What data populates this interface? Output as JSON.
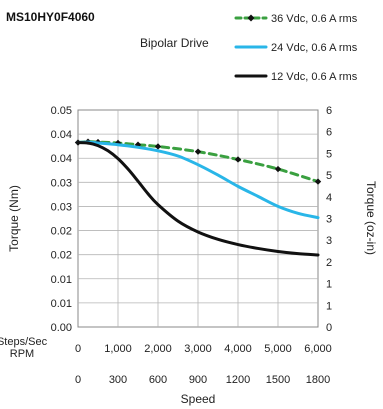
{
  "model_label": "MS10HY0F4060",
  "drive_label": "Bipolar Drive",
  "chart_data": {
    "type": "line",
    "y_left": {
      "label": "Torque (Nm)",
      "ticks": [
        "0.00",
        "0.01",
        "0.01",
        "0.02",
        "0.02",
        "0.03",
        "0.03",
        "0.04",
        "0.04",
        "0.05"
      ],
      "range": [
        0,
        0.05
      ]
    },
    "y_right": {
      "label": "Torque (oz-in)",
      "ticks": [
        "0",
        "1",
        "1",
        "2",
        "3",
        "3",
        "4",
        "5",
        "5",
        "6",
        "6"
      ],
      "range": [
        0,
        7
      ]
    },
    "x_primary": {
      "row_label": "Steps/Sec",
      "ticks": [
        "0",
        "1,000",
        "2,000",
        "3,000",
        "4,000",
        "5,000",
        "6,000"
      ],
      "range": [
        0,
        6000
      ]
    },
    "x_secondary": {
      "row_label": "RPM",
      "ticks": [
        "0",
        "300",
        "600",
        "900",
        "1200",
        "1500",
        "1800"
      ]
    },
    "xlabel": "Speed",
    "series": [
      {
        "name": "36 Vdc, 0.6 A rms",
        "color": "#3aa040",
        "style": "dashed",
        "marker": "diamond",
        "x": [
          0,
          250,
          500,
          1000,
          1500,
          2000,
          3000,
          4000,
          5000,
          6000
        ],
        "y": [
          0.0425,
          0.0427,
          0.0426,
          0.0424,
          0.042,
          0.0416,
          0.0404,
          0.0386,
          0.0364,
          0.0335
        ]
      },
      {
        "name": "24 Vdc, 0.6 A rms",
        "color": "#29b6e8",
        "style": "solid",
        "marker": "none",
        "x": [
          0,
          250,
          500,
          1000,
          1500,
          2000,
          2500,
          3000,
          3500,
          4000,
          4500,
          5000,
          5500,
          6000
        ],
        "y": [
          0.0425,
          0.0426,
          0.0424,
          0.042,
          0.0414,
          0.0406,
          0.0394,
          0.0374,
          0.035,
          0.0324,
          0.0301,
          0.0278,
          0.0262,
          0.0252
        ]
      },
      {
        "name": "12 Vdc, 0.6 A rms",
        "color": "#111111",
        "style": "solid",
        "marker": "none",
        "x": [
          0,
          250,
          500,
          750,
          1000,
          1250,
          1500,
          1750,
          2000,
          2500,
          3000,
          3500,
          4000,
          4500,
          5000,
          5500,
          6000
        ],
        "y": [
          0.0425,
          0.0424,
          0.0418,
          0.0406,
          0.0388,
          0.0364,
          0.0336,
          0.0307,
          0.0282,
          0.0244,
          0.0219,
          0.0202,
          0.019,
          0.0181,
          0.0174,
          0.0169,
          0.0166
        ]
      }
    ]
  }
}
